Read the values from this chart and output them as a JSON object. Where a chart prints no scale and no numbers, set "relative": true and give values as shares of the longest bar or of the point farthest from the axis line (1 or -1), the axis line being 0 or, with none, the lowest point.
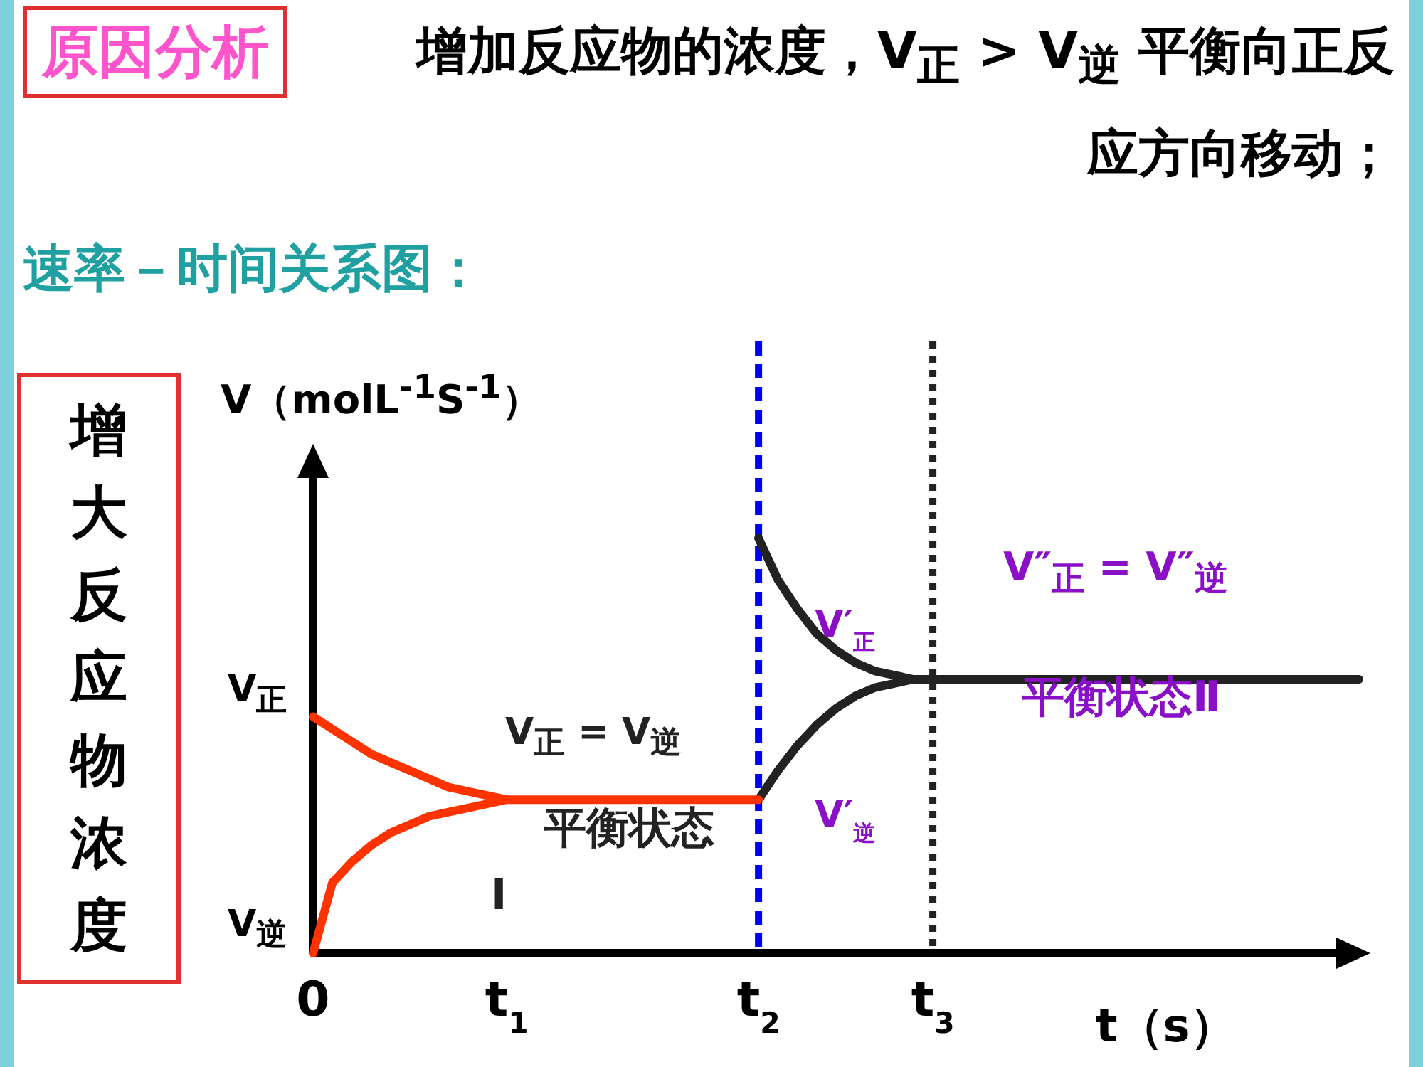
{
  "chart_data": {
    "type": "line",
    "relative": true,
    "title": "原因分析",
    "subtitle": "增加反应物的浓度，V$_{正}$ > V$_{逆}$ 平衡向正反应方向移动；",
    "ylabel": "V（molL$^{-1}$S$^{-1}$）",
    "xlabel": "t（s）",
    "categories": [
      "0",
      null,
      null,
      null,
      null,
      null,
      null,
      null,
      null,
      null,
      "t$_{1}$",
      null,
      null,
      null,
      null,
      null,
      null,
      null,
      null,
      null,
      null,
      null,
      null,
      "t$_{2}$",
      null,
      null,
      null,
      null,
      null,
      null,
      null,
      null,
      "t$_{3}$",
      null,
      null,
      null,
      null,
      null,
      null,
      null,
      null,
      null,
      null,
      null,
      null,
      null,
      null,
      null,
      null,
      null,
      null,
      null,
      null,
      null,
      null
    ],
    "marker": "none",
    "line_style": "solid",
    "series": [
      {
        "color": "#ff3300",
        "values": [
          0.57,
          0.54,
          0.51,
          0.48,
          0.46,
          0.44,
          0.42,
          0.4,
          0.39,
          0.38,
          0.37,
          0.37,
          0.37,
          0.37,
          0.37,
          0.37,
          0.37,
          0.37,
          0.37,
          0.37,
          0.37,
          0.37,
          0.37,
          0.37,
          null,
          null,
          null,
          null,
          null,
          null,
          null,
          null,
          null,
          null,
          null,
          null,
          null,
          null,
          null,
          null,
          null,
          null,
          null,
          null,
          null,
          null,
          null,
          null,
          null,
          null,
          null,
          null,
          null,
          null,
          null
        ]
      },
      {
        "color": "#ff3300",
        "values": [
          0,
          0.17,
          0.22,
          0.26,
          0.29,
          0.31,
          0.33,
          0.34,
          0.35,
          0.36,
          0.37,
          null,
          null,
          null,
          null,
          null,
          null,
          null,
          null,
          null,
          null,
          null,
          null,
          null,
          null,
          null,
          null,
          null,
          null,
          null,
          null,
          null,
          null,
          null,
          null,
          null,
          null,
          null,
          null,
          null,
          null,
          null,
          null,
          null,
          null,
          null,
          null,
          null,
          null,
          null,
          null,
          null,
          null,
          null,
          null
        ]
      },
      {
        "name": "V′$_{正}$",
        "color": "#222222",
        "values": [
          null,
          null,
          null,
          null,
          null,
          null,
          null,
          null,
          null,
          null,
          null,
          null,
          null,
          null,
          null,
          null,
          null,
          null,
          null,
          null,
          null,
          null,
          null,
          1,
          0.9,
          0.83,
          0.77,
          0.73,
          0.7,
          0.68,
          0.67,
          0.66,
          0.66,
          0.66,
          0.66,
          0.66,
          0.66,
          0.66,
          0.66,
          0.66,
          0.66,
          0.66,
          0.66,
          0.66,
          0.66,
          0.66,
          0.66,
          0.66,
          0.66,
          0.66,
          0.66,
          0.66,
          0.66,
          0.66,
          0.66
        ]
      },
      {
        "name": "V′$_{逆}$",
        "color": "#222222",
        "values": [
          null,
          null,
          null,
          null,
          null,
          null,
          null,
          null,
          null,
          null,
          null,
          null,
          null,
          null,
          null,
          null,
          null,
          null,
          null,
          null,
          null,
          null,
          null,
          0.37,
          0.44,
          0.5,
          0.55,
          0.59,
          0.62,
          0.64,
          0.65,
          0.66,
          0.66,
          null,
          null,
          null,
          null,
          null,
          null,
          null,
          null,
          null,
          null,
          null,
          null,
          null,
          null,
          null,
          null,
          null,
          null,
          null,
          null,
          null,
          null
        ]
      }
    ],
    "ref_lines": [
      {
        "axis": "x",
        "value": "t$_{2}$",
        "color": "#0000ff",
        "line_style": "dashed"
      },
      {
        "axis": "x",
        "value": "t$_{3}$",
        "color": "#222222",
        "line_style": "dotted"
      }
    ],
    "annotations": [
      "速率－时间关系图：",
      "增大反应物浓度",
      "V$_{正}$ = V$_{逆}$",
      "平衡状态",
      "Ⅰ",
      "V″$_{正}$ = V″$_{逆}$",
      "平衡状态Ⅱ",
      "V$_{正}$",
      "V$_{逆}$"
    ]
  }
}
